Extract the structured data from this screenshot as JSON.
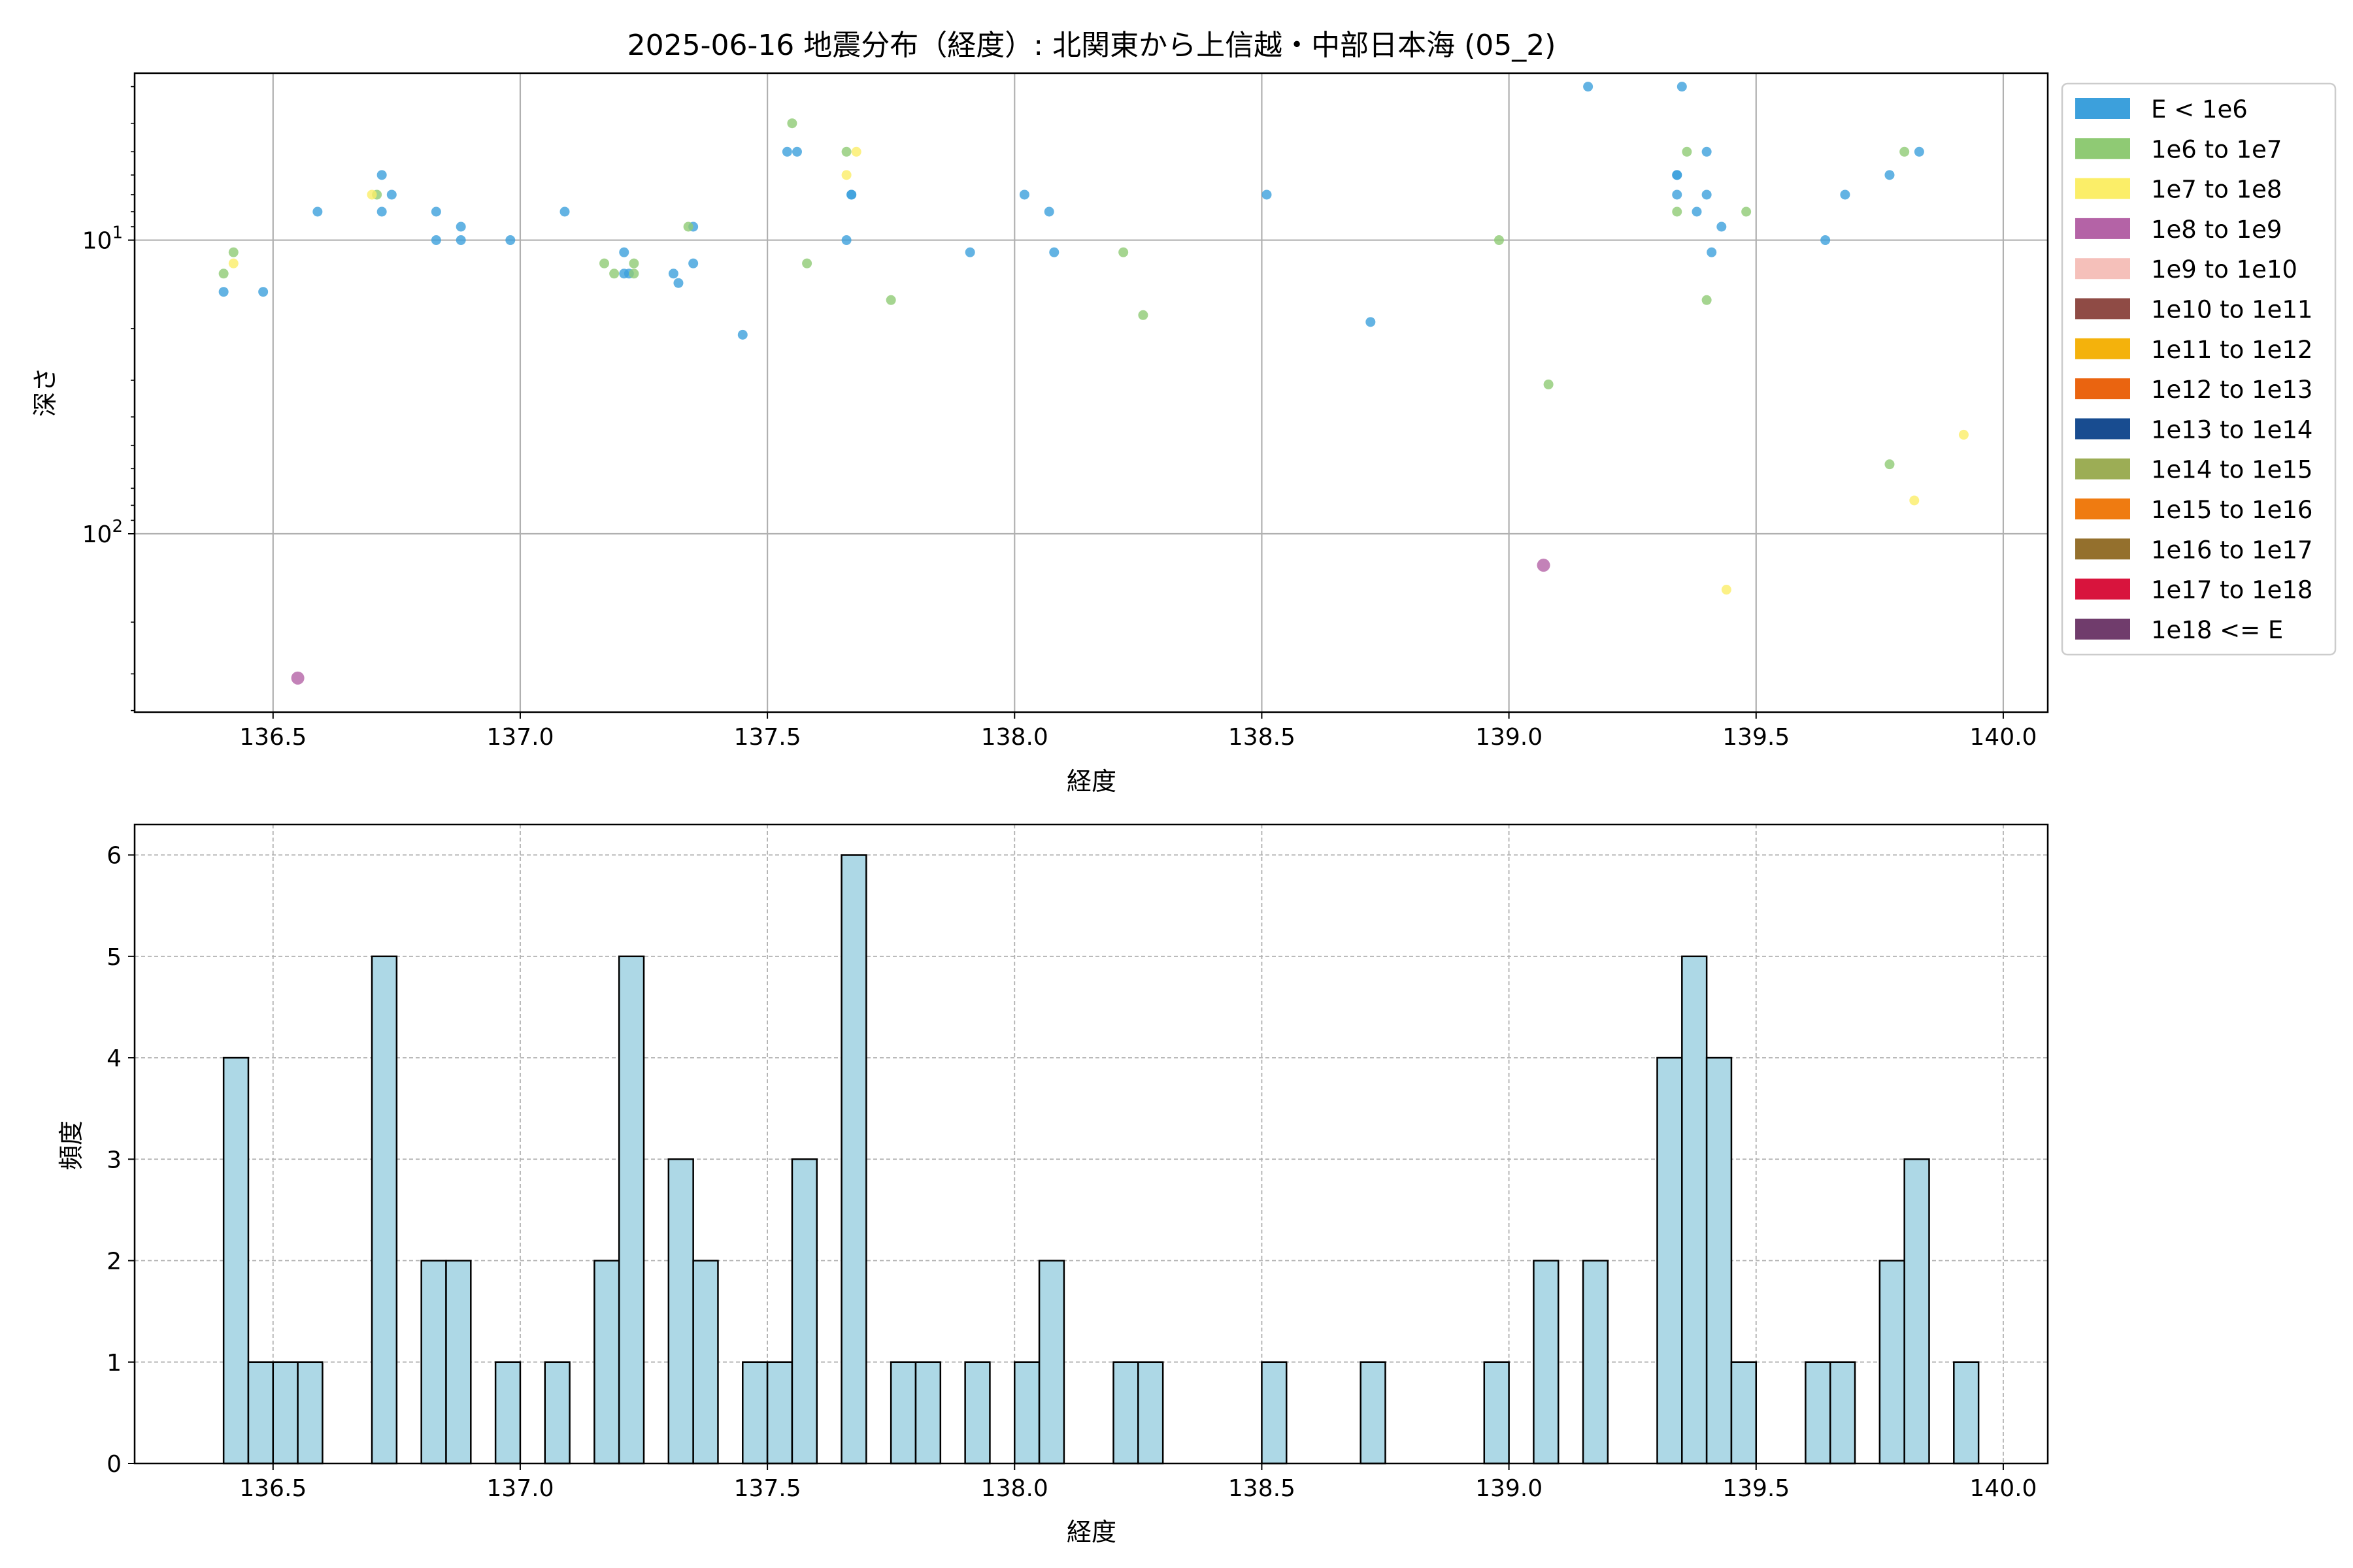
{
  "title": "2025-06-16 地震分布（経度）: 北関東から上信越・中部日本海 (05_2)",
  "chart_data": [
    {
      "type": "scatter",
      "title": "2025-06-16 地震分布（経度）: 北関東から上信越・中部日本海 (05_2)",
      "xlabel": "経度",
      "ylabel": "深さ",
      "xlim": [
        136.22,
        140.09
      ],
      "ylim": [
        405,
        2.7
      ],
      "y_scale": "log",
      "y_inverted": true,
      "grid": true,
      "legend_position": "right",
      "x_ticks": [
        "136.5",
        "137.0",
        "137.5",
        "138.0",
        "138.5",
        "139.0",
        "139.5",
        "140.0"
      ],
      "y_ticks": [
        {
          "base": "10",
          "exp": "1",
          "value": 10
        },
        {
          "base": "10",
          "exp": "2",
          "value": 100
        }
      ],
      "legend": [
        {
          "label": "E < 1e6",
          "color": "#3ca0dc"
        },
        {
          "label": "1e6 to 1e7",
          "color": "#8fca74"
        },
        {
          "label": "1e7 to 1e8",
          "color": "#fbee68"
        },
        {
          "label": "1e8 to 1e9",
          "color": "#b463a6"
        },
        {
          "label": "1e9 to 1e10",
          "color": "#f5c0ba"
        },
        {
          "label": "1e10 to 1e11",
          "color": "#8f4b45"
        },
        {
          "label": "1e11 to 1e12",
          "color": "#f4b20c"
        },
        {
          "label": "1e12 to 1e13",
          "color": "#ea6410"
        },
        {
          "label": "1e13 to 1e14",
          "color": "#184c90"
        },
        {
          "label": "1e14 to 1e15",
          "color": "#9cad55"
        },
        {
          "label": "1e15 to 1e16",
          "color": "#ef7b11"
        },
        {
          "label": "1e16 to 1e17",
          "color": "#94702d"
        },
        {
          "label": "1e17 to 1e18",
          "color": "#d8143d"
        },
        {
          "label": "1e18 <= E",
          "color": "#703c6c"
        }
      ],
      "series": [
        {
          "name": "E < 1e6",
          "color": "#3ca0dc",
          "points": [
            [
              136.4,
              15
            ],
            [
              136.48,
              15
            ],
            [
              136.59,
              8
            ],
            [
              136.72,
              6
            ],
            [
              136.72,
              8
            ],
            [
              136.74,
              7
            ],
            [
              136.83,
              8
            ],
            [
              136.83,
              10
            ],
            [
              136.88,
              9
            ],
            [
              136.88,
              10
            ],
            [
              136.98,
              10
            ],
            [
              137.09,
              8
            ],
            [
              137.21,
              11
            ],
            [
              137.21,
              13
            ],
            [
              137.22,
              13
            ],
            [
              137.31,
              13
            ],
            [
              137.32,
              14
            ],
            [
              137.35,
              9
            ],
            [
              137.35,
              12
            ],
            [
              137.45,
              21
            ],
            [
              137.54,
              5
            ],
            [
              137.56,
              5
            ],
            [
              137.66,
              10
            ],
            [
              137.67,
              7
            ],
            [
              137.67,
              7
            ],
            [
              137.91,
              11
            ],
            [
              138.02,
              7
            ],
            [
              138.07,
              8
            ],
            [
              138.08,
              11
            ],
            [
              138.51,
              7
            ],
            [
              138.72,
              19
            ],
            [
              139.16,
              3
            ],
            [
              139.35,
              3
            ],
            [
              139.34,
              6
            ],
            [
              139.34,
              6
            ],
            [
              139.34,
              7
            ],
            [
              139.38,
              8
            ],
            [
              139.4,
              5
            ],
            [
              139.4,
              7
            ],
            [
              139.41,
              11
            ],
            [
              139.43,
              9
            ],
            [
              139.64,
              10
            ],
            [
              139.68,
              7
            ],
            [
              139.77,
              6
            ],
            [
              139.83,
              5
            ]
          ]
        },
        {
          "name": "1e6 to 1e7",
          "color": "#8fca74",
          "points": [
            [
              136.4,
              13
            ],
            [
              136.42,
              11
            ],
            [
              136.71,
              7
            ],
            [
              137.17,
              12
            ],
            [
              137.19,
              13
            ],
            [
              137.23,
              12
            ],
            [
              137.23,
              13
            ],
            [
              137.34,
              9
            ],
            [
              137.55,
              4
            ],
            [
              137.58,
              12
            ],
            [
              137.66,
              5
            ],
            [
              137.75,
              16
            ],
            [
              138.22,
              11
            ],
            [
              138.26,
              18
            ],
            [
              138.98,
              10
            ],
            [
              139.08,
              31
            ],
            [
              139.34,
              8
            ],
            [
              139.36,
              5
            ],
            [
              139.4,
              16
            ],
            [
              139.48,
              8
            ],
            [
              139.77,
              58
            ],
            [
              139.8,
              5
            ]
          ]
        },
        {
          "name": "1e7 to 1e8",
          "color": "#fbee68",
          "points": [
            [
              136.42,
              12
            ],
            [
              136.7,
              7
            ],
            [
              137.66,
              6
            ],
            [
              137.68,
              5
            ],
            [
              139.44,
              155
            ],
            [
              139.82,
              77
            ],
            [
              139.92,
              46
            ]
          ]
        },
        {
          "name": "1e8 to 1e9",
          "color": "#b463a6",
          "points": [
            [
              136.55,
              310
            ],
            [
              139.07,
              128
            ]
          ]
        }
      ]
    },
    {
      "type": "bar",
      "title": "",
      "xlabel": "経度",
      "ylabel": "頻度",
      "xlim": [
        136.22,
        140.09
      ],
      "ylim": [
        0,
        6.3
      ],
      "grid": true,
      "bin_width": 0.05,
      "bar_color": "#add8e6",
      "edge_color": "#000000",
      "x_ticks": [
        "136.5",
        "137.0",
        "137.5",
        "138.0",
        "138.5",
        "139.0",
        "139.5",
        "140.0"
      ],
      "y_ticks": [
        "0",
        "1",
        "2",
        "3",
        "4",
        "5",
        "6"
      ],
      "bins": [
        [
          136.4,
          4
        ],
        [
          136.45,
          1
        ],
        [
          136.5,
          1
        ],
        [
          136.55,
          1
        ],
        [
          136.7,
          5
        ],
        [
          136.8,
          2
        ],
        [
          136.85,
          2
        ],
        [
          136.95,
          1
        ],
        [
          137.05,
          1
        ],
        [
          137.15,
          2
        ],
        [
          137.2,
          5
        ],
        [
          137.3,
          3
        ],
        [
          137.35,
          2
        ],
        [
          137.45,
          1
        ],
        [
          137.5,
          1
        ],
        [
          137.55,
          3
        ],
        [
          137.65,
          6
        ],
        [
          137.75,
          1
        ],
        [
          137.8,
          1
        ],
        [
          137.9,
          1
        ],
        [
          138.0,
          1
        ],
        [
          138.05,
          2
        ],
        [
          138.2,
          1
        ],
        [
          138.25,
          1
        ],
        [
          138.5,
          1
        ],
        [
          138.7,
          1
        ],
        [
          138.95,
          1
        ],
        [
          139.05,
          2
        ],
        [
          139.15,
          2
        ],
        [
          139.3,
          4
        ],
        [
          139.35,
          5
        ],
        [
          139.4,
          4
        ],
        [
          139.45,
          1
        ],
        [
          139.6,
          1
        ],
        [
          139.65,
          1
        ],
        [
          139.75,
          2
        ],
        [
          139.8,
          3
        ],
        [
          139.9,
          1
        ]
      ]
    }
  ]
}
